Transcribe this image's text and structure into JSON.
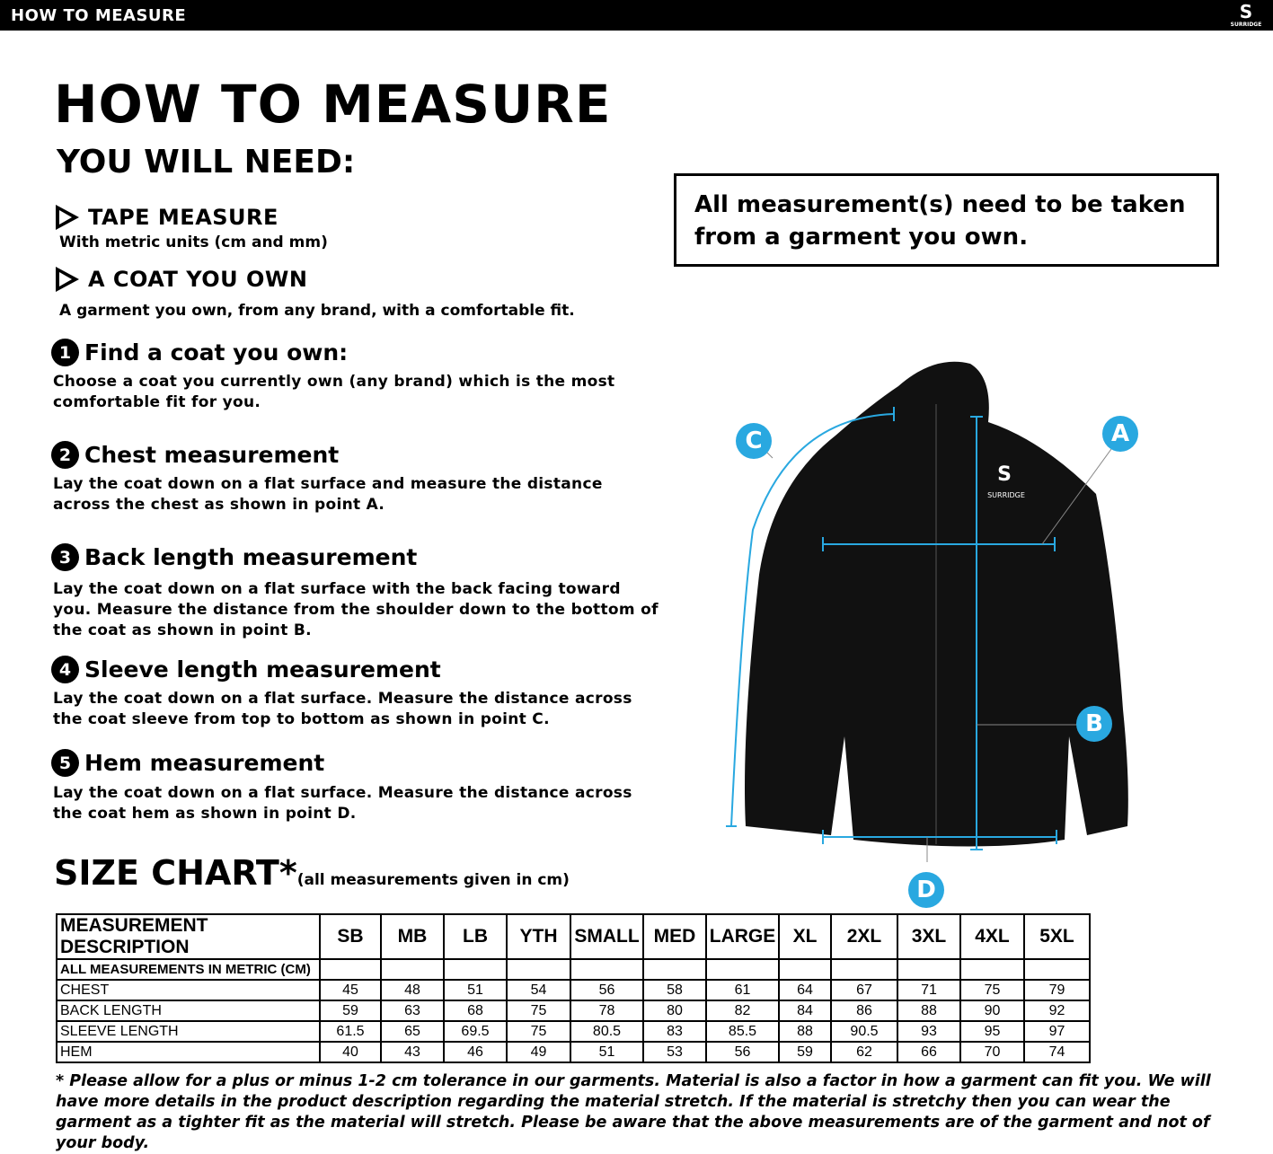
{
  "header": {
    "title": "HOW TO MEASURE",
    "logo_text": "SURRIDGE"
  },
  "main": {
    "title": "HOW TO MEASURE",
    "you_will_need": "YOU WILL NEED:",
    "needs": [
      {
        "title": "TAPE MEASURE",
        "desc": "With metric units (cm and mm)"
      },
      {
        "title": "A COAT YOU OWN",
        "desc": "A garment you own, from any brand, with a comfortable fit."
      }
    ],
    "steps": [
      {
        "num": "1",
        "title": "Find a coat you own:",
        "desc": "Choose a coat you currently own (any brand) which is the most comfortable fit for you."
      },
      {
        "num": "2",
        "title": "Chest measurement",
        "desc": "Lay the coat down on a flat surface and measure the distance across the chest as shown in point A."
      },
      {
        "num": "3",
        "title": "Back length measurement",
        "desc": "Lay the coat down on a flat surface with the back facing toward you. Measure the distance from the shoulder down to the bottom of the coat as shown in point B."
      },
      {
        "num": "4",
        "title": "Sleeve length measurement",
        "desc": "Lay the coat down on a flat surface. Measure the distance across the coat sleeve from top to bottom as shown in point C."
      },
      {
        "num": "5",
        "title": "Hem measurement",
        "desc": "Lay the coat down on a flat surface. Measure the distance across the coat hem as shown in point D."
      }
    ],
    "notice": "All measurement(s) need to be taken from a garment you own."
  },
  "diagram": {
    "labels": [
      "A",
      "B",
      "C",
      "D"
    ],
    "accent": "#29a8e0",
    "jacket_logo": "SURRIDGE"
  },
  "size_chart": {
    "title": "SIZE CHART*",
    "note": "(all measurements given in cm)",
    "headers": [
      "MEASUREMENT DESCRIPTION",
      "SB",
      "MB",
      "LB",
      "YTH",
      "SMALL",
      "MED",
      "LARGE",
      "XL",
      "2XL",
      "3XL",
      "4XL",
      "5XL"
    ],
    "subheader": "ALL MEASUREMENTS IN METRIC (CM)",
    "rows": [
      {
        "label": "CHEST",
        "values": [
          "45",
          "48",
          "51",
          "54",
          "56",
          "58",
          "61",
          "64",
          "67",
          "71",
          "75",
          "79"
        ]
      },
      {
        "label": "BACK LENGTH",
        "values": [
          "59",
          "63",
          "68",
          "75",
          "78",
          "80",
          "82",
          "84",
          "86",
          "88",
          "90",
          "92"
        ]
      },
      {
        "label": "SLEEVE LENGTH",
        "values": [
          "61.5",
          "65",
          "69.5",
          "75",
          "80.5",
          "83",
          "85.5",
          "88",
          "90.5",
          "93",
          "95",
          "97"
        ]
      },
      {
        "label": "HEM",
        "values": [
          "40",
          "43",
          "46",
          "49",
          "51",
          "53",
          "56",
          "59",
          "62",
          "66",
          "70",
          "74"
        ]
      }
    ]
  },
  "footnote": "* Please allow for a plus or minus 1-2 cm tolerance in our garments. Material is also a factor in how a garment can fit you. We will have more details in the product description regarding the material stretch.  If the material is stretchy then you can wear the garment as a tighter fit as the material will stretch.  Please be aware that the above measurements are of the garment and not of your body."
}
